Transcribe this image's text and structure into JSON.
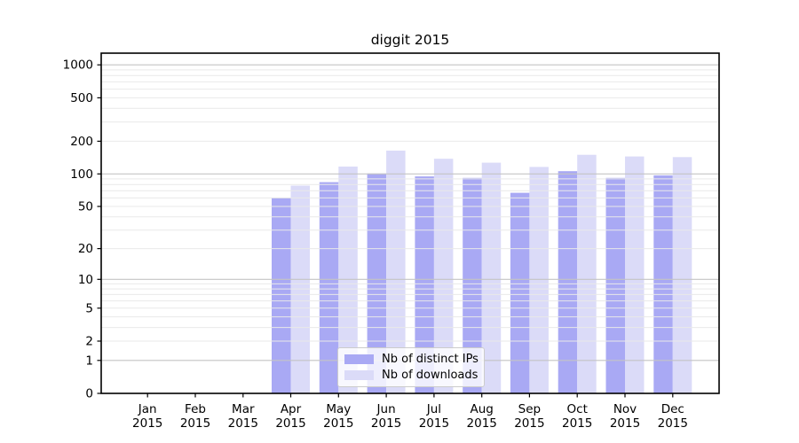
{
  "title": "diggit 2015",
  "chart_data": {
    "type": "bar",
    "title": "diggit 2015",
    "categories": [
      "Jan 2015",
      "Feb 2015",
      "Mar 2015",
      "Apr 2015",
      "May 2015",
      "Jun 2015",
      "Jul 2015",
      "Aug 2015",
      "Sep 2015",
      "Oct 2015",
      "Nov 2015",
      "Dec 2015"
    ],
    "x_tick_line1": [
      "Jan",
      "Feb",
      "Mar",
      "Apr",
      "May",
      "Jun",
      "Jul",
      "Aug",
      "Sep",
      "Oct",
      "Nov",
      "Dec"
    ],
    "x_tick_line2": [
      "2015",
      "2015",
      "2015",
      "2015",
      "2015",
      "2015",
      "2015",
      "2015",
      "2015",
      "2015",
      "2015",
      "2015"
    ],
    "series": [
      {
        "name": "Nb of distinct IPs",
        "color": "#a9a9f4",
        "values": [
          0,
          0,
          0,
          60,
          84,
          101,
          95,
          92,
          67,
          106,
          92,
          97
        ]
      },
      {
        "name": "Nb of downloads",
        "color": "#dbdbf8",
        "values": [
          0,
          0,
          0,
          78,
          117,
          164,
          138,
          127,
          116,
          150,
          145,
          143
        ]
      }
    ],
    "yscale": "log1p",
    "ylim": [
      0,
      1280
    ],
    "y_tick_values": [
      1000,
      500,
      200,
      100,
      50,
      20,
      10,
      5,
      2,
      1,
      0
    ],
    "y_major_gridlines": [
      1,
      10,
      100,
      1000
    ],
    "grid": "on",
    "legend_position": "inside lower center-left",
    "colors": {
      "background": "#ffffff",
      "axis": "#000000",
      "text": "#000000",
      "grid_minor": "#e9e9e9",
      "grid_major": "#c4c4c4"
    }
  }
}
